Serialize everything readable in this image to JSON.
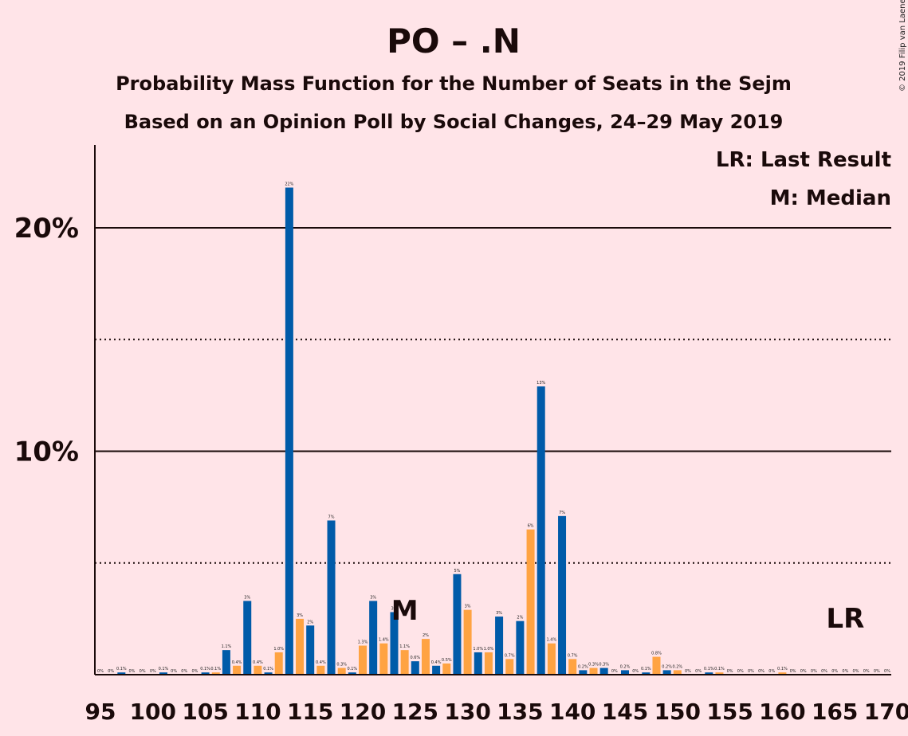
{
  "title": "PO – .N",
  "subtitle1": "Probability Mass Function for the Number of Seats in the Sejm",
  "subtitle2": "Based on an Opinion Poll by Social Changes, 24–29 May 2019",
  "credit": "© 2019 Filip van Laenen",
  "legend": {
    "last_result": "LR: Last Result",
    "median": "M: Median"
  },
  "markers": {
    "median_label": "M",
    "median_seat": 124,
    "last_result_label": "LR",
    "last_result_seat": 166
  },
  "colors": {
    "background": "#FFE4E8",
    "series_a": "#005BA9",
    "series_b": "#FFA342",
    "axis": "#1a0a0a"
  },
  "chart_data": {
    "type": "bar",
    "x": [
      95,
      96,
      97,
      98,
      99,
      100,
      101,
      102,
      103,
      104,
      105,
      106,
      107,
      108,
      109,
      110,
      111,
      112,
      113,
      114,
      115,
      116,
      117,
      118,
      119,
      120,
      121,
      122,
      123,
      124,
      125,
      126,
      127,
      128,
      129,
      130,
      131,
      132,
      133,
      134,
      135,
      136,
      137,
      138,
      139,
      140,
      141,
      142,
      143,
      144,
      145,
      146,
      147,
      148,
      149,
      150,
      151,
      152,
      153,
      154,
      155,
      156,
      157,
      158,
      159,
      160,
      161,
      162,
      163,
      164,
      165,
      166,
      167,
      168,
      169,
      170
    ],
    "values": [
      0,
      0,
      0.1,
      0,
      0,
      0,
      0.1,
      0,
      0,
      0,
      0.1,
      0.1,
      1.1,
      0.4,
      3.3,
      0.4,
      0.1,
      1.0,
      21.8,
      2.5,
      2.2,
      0.4,
      6.9,
      0.3,
      0.1,
      1.3,
      3.3,
      1.4,
      2.8,
      1.1,
      0.6,
      1.6,
      0.4,
      0.5,
      4.5,
      2.9,
      1.0,
      1.0,
      2.6,
      0.7,
      2.4,
      6.5,
      12.9,
      1.4,
      7.1,
      0.7,
      0.2,
      0.3,
      0.3,
      0,
      0.2,
      0,
      0.1,
      0.8,
      0.2,
      0.2,
      0,
      0,
      0.1,
      0.1,
      0,
      0,
      0,
      0,
      0,
      0.1,
      0,
      0,
      0,
      0,
      0,
      0,
      0,
      0,
      0,
      0
    ],
    "data_labels": [
      "0%",
      "0%",
      "0.1%",
      "0%",
      "0%",
      "0%",
      "0.1%",
      "0%",
      "0%",
      "0%",
      "0.1%",
      "0.1%",
      "1.1%",
      "0.4%",
      "3%",
      "0.4%",
      "0.1%",
      "1.0%",
      "22%",
      "3%",
      "2%",
      "0.4%",
      "7%",
      "0.3%",
      "0.1%",
      "1.3%",
      "3%",
      "1.4%",
      "3%",
      "1.1%",
      "0.6%",
      "2%",
      "0.4%",
      "0.5%",
      "5%",
      "3%",
      "1.0%",
      "1.0%",
      "3%",
      "0.7%",
      "2%",
      "6%",
      "13%",
      "1.4%",
      "7%",
      "0.7%",
      "0.2%",
      "0.3%",
      "0.3%",
      "0%",
      "0.2%",
      "0%",
      "0.1%",
      "0.8%",
      "0.2%",
      "0.2%",
      "0%",
      "0%",
      "0.1%",
      "0.1%",
      "0%",
      "0%",
      "0%",
      "0%",
      "0%",
      "0.1%",
      "0%",
      "0%",
      "0%",
      "0%",
      "0%",
      "0%",
      "0%",
      "0%",
      "0%",
      "0%"
    ],
    "x_tick_labels": [
      "95",
      "100",
      "105",
      "110",
      "115",
      "120",
      "125",
      "130",
      "135",
      "140",
      "145",
      "150",
      "155",
      "160",
      "165",
      "170"
    ],
    "y_ticks": [
      {
        "value": 10,
        "label": "10%"
      },
      {
        "value": 20,
        "label": "20%"
      }
    ],
    "y_minor_gridlines": [
      5,
      15
    ],
    "ylim": [
      0,
      23.7
    ],
    "xlim": [
      95,
      170
    ]
  }
}
